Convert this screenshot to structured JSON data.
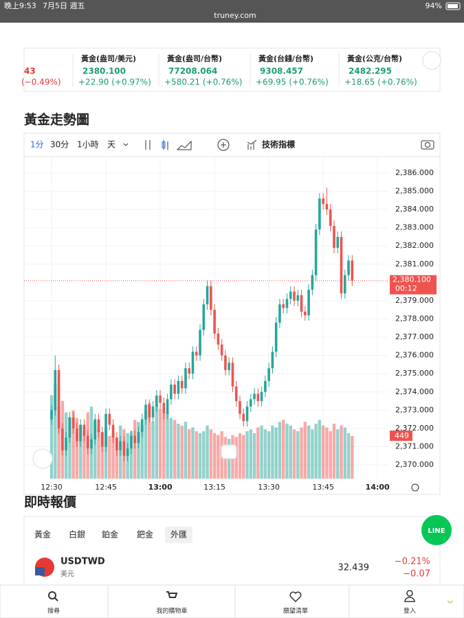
{
  "status": {
    "time": "晚上9:53",
    "date": "7月5日 週五",
    "url": "truney.com",
    "battery": "94%"
  },
  "tickers": [
    {
      "price": "43",
      "change": "(−0.49%)",
      "color": "#e53935"
    },
    {
      "name": "黃金(盎司/美元)",
      "price": "2380.100",
      "change": "+22.90 (+0.97%)",
      "color": "#1a9e6e"
    },
    {
      "name": "黃金(盎司/台幣)",
      "price": "77208.064",
      "change": "+580.21 (+0.76%)",
      "color": "#1a9e6e"
    },
    {
      "name": "黃金(台錢/台幣)",
      "price": "9308.457",
      "change": "+69.95 (+0.76%)",
      "color": "#1a9e6e"
    },
    {
      "name": "黃金(公克/台幣)",
      "price": "2482.295",
      "change": "+18.65 (+0.76%)",
      "color": "#1a9e6e"
    }
  ],
  "toolbar": {
    "intervals": [
      "1分",
      "30分",
      "1小時",
      "天"
    ],
    "indicators": "技術指標"
  },
  "chart_data": {
    "type": "candlestick",
    "title": "黃金走勢圖",
    "up_color": "#26a69a",
    "down_color": "#ef5350",
    "x": [
      30,
      31,
      32,
      33,
      34,
      35,
      36,
      37,
      38,
      39,
      40,
      41,
      42,
      43,
      44,
      45,
      46,
      47,
      48,
      49,
      50,
      51,
      52,
      53,
      54,
      55,
      56,
      57,
      58,
      59,
      60,
      61,
      62,
      63,
      64,
      65,
      66,
      67,
      68,
      69,
      70,
      71,
      72,
      73,
      74,
      75,
      76,
      77,
      78,
      79,
      80,
      81,
      82,
      83,
      84,
      85,
      86,
      87,
      88,
      89,
      90,
      91,
      92,
      93,
      94,
      95,
      96,
      97,
      98,
      99,
      100,
      101,
      102,
      103,
      104,
      105,
      106,
      107,
      108,
      109,
      110,
      111,
      112,
      113
    ],
    "open": [
      2372.5,
      2373.0,
      2375.2,
      2372.0,
      2370.8,
      2371.5,
      2372.6,
      2372.0,
      2371.3,
      2372.2,
      2371.6,
      2370.9,
      2371.4,
      2372.5,
      2371.8,
      2371.0,
      2372.8,
      2372.2,
      2371.5,
      2370.8,
      2371.3,
      2370.5,
      2370.9,
      2371.6,
      2371.2,
      2371.8,
      2372.5,
      2373.3,
      2372.6,
      2373.2,
      2373.8,
      2373.4,
      2372.8,
      2373.6,
      2374.4,
      2373.9,
      2374.6,
      2374.2,
      2375.3,
      2375.0,
      2376.2,
      2376.0,
      2377.4,
      2378.8,
      2379.8,
      2378.5,
      2377.2,
      2376.6,
      2376.0,
      2375.2,
      2375.6,
      2374.3,
      2373.5,
      2372.8,
      2372.4,
      2373.2,
      2373.6,
      2373.9,
      2373.5,
      2374.0,
      2374.6,
      2375.3,
      2376.2,
      2377.8,
      2378.8,
      2378.6,
      2379.1,
      2379.5,
      2379.0,
      2379.3,
      2378.4,
      2378.2,
      2379.6,
      2380.4,
      2382.9,
      2384.6,
      2384.3,
      2384.0,
      2383.1,
      2381.9,
      2382.5,
      2379.4,
      2380.4,
      2381.2
    ],
    "high": [
      2373.3,
      2376.0,
      2375.5,
      2372.3,
      2371.8,
      2372.9,
      2372.9,
      2372.3,
      2372.5,
      2372.5,
      2371.9,
      2371.7,
      2372.8,
      2372.8,
      2372.1,
      2373.1,
      2373.1,
      2372.5,
      2371.8,
      2371.6,
      2371.6,
      2371.2,
      2371.9,
      2371.9,
      2372.1,
      2372.8,
      2373.6,
      2373.6,
      2373.5,
      2374.1,
      2374.1,
      2373.7,
      2373.9,
      2374.7,
      2374.7,
      2374.9,
      2374.9,
      2375.6,
      2375.6,
      2376.5,
      2376.5,
      2377.7,
      2379.1,
      2380.1,
      2380.1,
      2378.8,
      2377.5,
      2376.9,
      2376.3,
      2375.9,
      2375.9,
      2374.6,
      2373.8,
      2373.1,
      2373.5,
      2373.9,
      2374.2,
      2374.2,
      2374.3,
      2374.9,
      2375.6,
      2376.5,
      2378.1,
      2379.1,
      2379.1,
      2379.4,
      2379.8,
      2379.8,
      2379.6,
      2379.6,
      2378.7,
      2379.9,
      2380.7,
      2383.2,
      2384.9,
      2384.9,
      2385.2,
      2384.3,
      2383.4,
      2382.8,
      2382.8,
      2380.7,
      2381.5,
      2381.5
    ],
    "low": [
      2372.2,
      2372.7,
      2371.7,
      2370.5,
      2370.5,
      2371.2,
      2371.7,
      2371.0,
      2371.0,
      2371.3,
      2370.6,
      2370.6,
      2371.1,
      2371.5,
      2370.7,
      2370.7,
      2371.9,
      2371.2,
      2370.5,
      2370.5,
      2370.2,
      2370.2,
      2370.6,
      2370.9,
      2370.9,
      2371.5,
      2372.2,
      2372.3,
      2372.3,
      2372.9,
      2373.1,
      2372.5,
      2372.5,
      2373.3,
      2373.6,
      2373.6,
      2373.9,
      2373.9,
      2374.7,
      2374.7,
      2375.7,
      2375.7,
      2377.1,
      2378.5,
      2378.2,
      2376.9,
      2376.3,
      2375.7,
      2374.9,
      2374.9,
      2374.0,
      2373.2,
      2372.5,
      2372.1,
      2372.1,
      2372.9,
      2373.3,
      2373.2,
      2373.2,
      2373.7,
      2374.3,
      2375.0,
      2375.9,
      2377.5,
      2378.3,
      2378.3,
      2378.8,
      2378.7,
      2378.7,
      2378.1,
      2377.9,
      2377.9,
      2379.3,
      2380.1,
      2382.6,
      2384.0,
      2383.7,
      2382.8,
      2381.6,
      2381.6,
      2379.1,
      2379.1,
      2380.1,
      2379.8
    ],
    "close": [
      2373.0,
      2375.2,
      2372.0,
      2370.8,
      2371.5,
      2372.6,
      2372.0,
      2371.3,
      2372.2,
      2371.6,
      2370.9,
      2371.4,
      2372.5,
      2371.8,
      2371.0,
      2372.8,
      2372.2,
      2371.5,
      2370.8,
      2371.3,
      2370.5,
      2370.9,
      2371.6,
      2371.2,
      2371.8,
      2372.5,
      2373.3,
      2372.6,
      2373.2,
      2373.8,
      2373.4,
      2372.8,
      2373.6,
      2374.4,
      2373.9,
      2374.6,
      2374.2,
      2375.3,
      2375.0,
      2376.2,
      2376.0,
      2377.4,
      2378.8,
      2379.8,
      2378.5,
      2377.2,
      2376.6,
      2376.0,
      2375.2,
      2375.6,
      2374.3,
      2373.5,
      2372.8,
      2372.4,
      2373.2,
      2373.6,
      2373.9,
      2373.5,
      2374.0,
      2374.6,
      2375.3,
      2376.2,
      2377.8,
      2378.8,
      2378.6,
      2379.1,
      2379.5,
      2379.0,
      2379.3,
      2378.4,
      2378.2,
      2379.6,
      2380.4,
      2382.9,
      2384.6,
      2384.3,
      2384.0,
      2383.1,
      2381.9,
      2382.5,
      2379.4,
      2380.4,
      2381.2,
      2380.1
    ],
    "volume": [
      880,
      1000,
      760,
      820,
      700,
      650,
      720,
      640,
      560,
      500,
      700,
      760,
      600,
      520,
      480,
      540,
      450,
      480,
      420,
      560,
      520,
      480,
      500,
      620,
      600,
      560,
      720,
      800,
      600,
      780,
      740,
      680,
      700,
      640,
      620,
      580,
      560,
      600,
      520,
      540,
      500,
      480,
      500,
      560,
      520,
      480,
      460,
      500,
      440,
      420,
      460,
      440,
      480,
      460,
      500,
      520,
      480,
      540,
      560,
      520,
      500,
      560,
      540,
      600,
      620,
      580,
      560,
      520,
      500,
      540,
      600,
      560,
      520,
      580,
      620,
      560,
      540,
      500,
      580,
      520,
      560,
      540,
      480,
      449
    ],
    "xlim": [
      22.4,
      123
    ],
    "ylim": [
      2369.25,
      2386.9
    ],
    "volume_lim": [
      0,
      3400
    ],
    "xticks": [
      {
        "value": 30,
        "label": "12:30"
      },
      {
        "value": 45,
        "label": "12:45"
      },
      {
        "value": 60,
        "label": "13:00"
      },
      {
        "value": 75,
        "label": "13:15"
      },
      {
        "value": 90,
        "label": "13:30"
      },
      {
        "value": 105,
        "label": "13:45"
      },
      {
        "value": 120,
        "label": "14:00"
      }
    ],
    "yticks": [
      {
        "value": 2370,
        "label": "2,370.000"
      },
      {
        "value": 2371,
        "label": "2,371.000"
      },
      {
        "value": 2372,
        "label": "2,372.000"
      },
      {
        "value": 2373,
        "label": "2,373.000"
      },
      {
        "value": 2374,
        "label": "2,374.000"
      },
      {
        "value": 2375,
        "label": "2,375.000"
      },
      {
        "value": 2376,
        "label": "2,376.000"
      },
      {
        "value": 2377,
        "label": "2,377.000"
      },
      {
        "value": 2378,
        "label": "2,378.000"
      },
      {
        "value": 2379,
        "label": "2,379.000"
      },
      {
        "value": 2380,
        "label": "2,380.000"
      },
      {
        "value": 2381,
        "label": "2,381.000"
      },
      {
        "value": 2382,
        "label": "2,382.000"
      },
      {
        "value": 2383,
        "label": "2,383.000"
      },
      {
        "value": 2384,
        "label": "2,384.000"
      },
      {
        "value": 2385,
        "label": "2,385.000"
      },
      {
        "value": 2386,
        "label": "2,386.000"
      }
    ],
    "last_price": {
      "value": 2380.1,
      "label": "2,380.100"
    },
    "countdown": "00:12"
  },
  "quotes": {
    "title": "即時報價",
    "tabs": [
      "黃金",
      "白銀",
      "鉑金",
      "鈀金",
      "外匯"
    ],
    "rows": [
      {
        "symbol": "USDTWD",
        "name": "美元",
        "price": "32.439",
        "change_pct": "−0.21%",
        "change": "−0.07"
      }
    ]
  },
  "nav": [
    "搜尋",
    "我的購物車",
    "願望清單",
    "登入"
  ]
}
